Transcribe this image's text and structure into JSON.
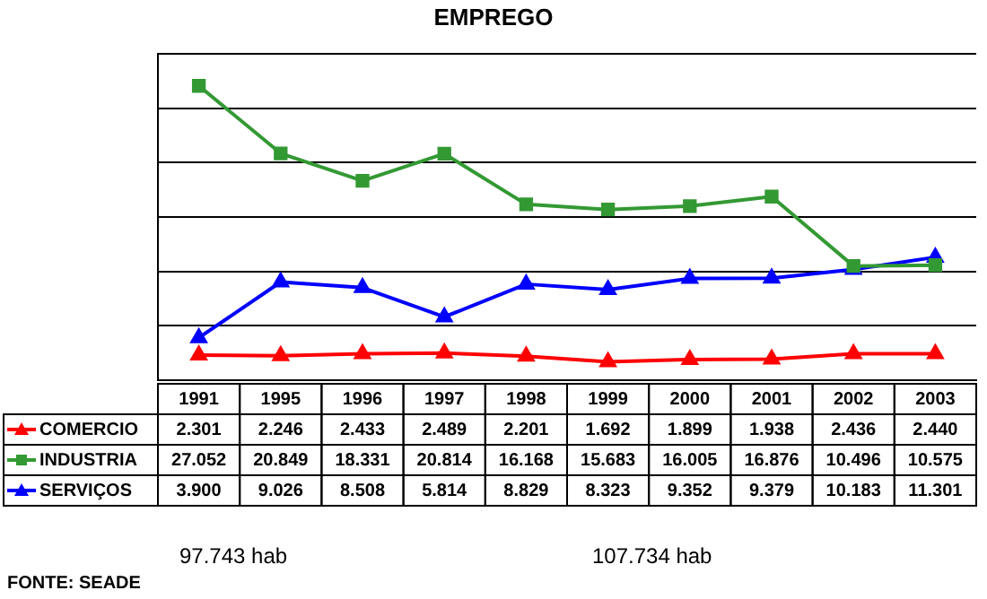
{
  "chart_data": {
    "type": "line",
    "title": "EMPREGO",
    "categories": [
      "1991",
      "1995",
      "1996",
      "1997",
      "1998",
      "1999",
      "2000",
      "2001",
      "2002",
      "2003"
    ],
    "series": [
      {
        "name": "COMERCIO",
        "color": "#ff0000",
        "marker": "triangle",
        "values": [
          2.301,
          2.246,
          2.433,
          2.489,
          2.201,
          1.692,
          1.899,
          1.938,
          2.436,
          2.44
        ],
        "value_labels": [
          "2.301",
          "2.246",
          "2.433",
          "2.489",
          "2.201",
          "1.692",
          "1.899",
          "1.938",
          "2.436",
          "2.440"
        ]
      },
      {
        "name": "INDUSTRIA",
        "color": "#339933",
        "marker": "square",
        "values": [
          27.052,
          20.849,
          18.331,
          20.814,
          16.168,
          15.683,
          16.005,
          16.876,
          10.496,
          10.575
        ],
        "value_labels": [
          "27.052",
          "20.849",
          "18.331",
          "20.814",
          "16.168",
          "15.683",
          "16.005",
          "16.876",
          "10.496",
          "10.575"
        ]
      },
      {
        "name": "SERVIÇOS",
        "color": "#0000ff",
        "marker": "triangle",
        "values": [
          3.9,
          9.026,
          8.508,
          5.814,
          8.829,
          8.323,
          9.352,
          9.379,
          10.183,
          11.301
        ],
        "value_labels": [
          "3.900",
          "9.026",
          "8.508",
          "5.814",
          "8.829",
          "8.323",
          "9.352",
          "9.379",
          "10.183",
          "11.301"
        ]
      }
    ],
    "ylim": [
      0,
      30
    ],
    "grid": "y",
    "tick_labels": "x",
    "legend": "left",
    "annotations": [
      "97.743 hab",
      "107.734 hab",
      "FONTE: SEADE"
    ]
  }
}
